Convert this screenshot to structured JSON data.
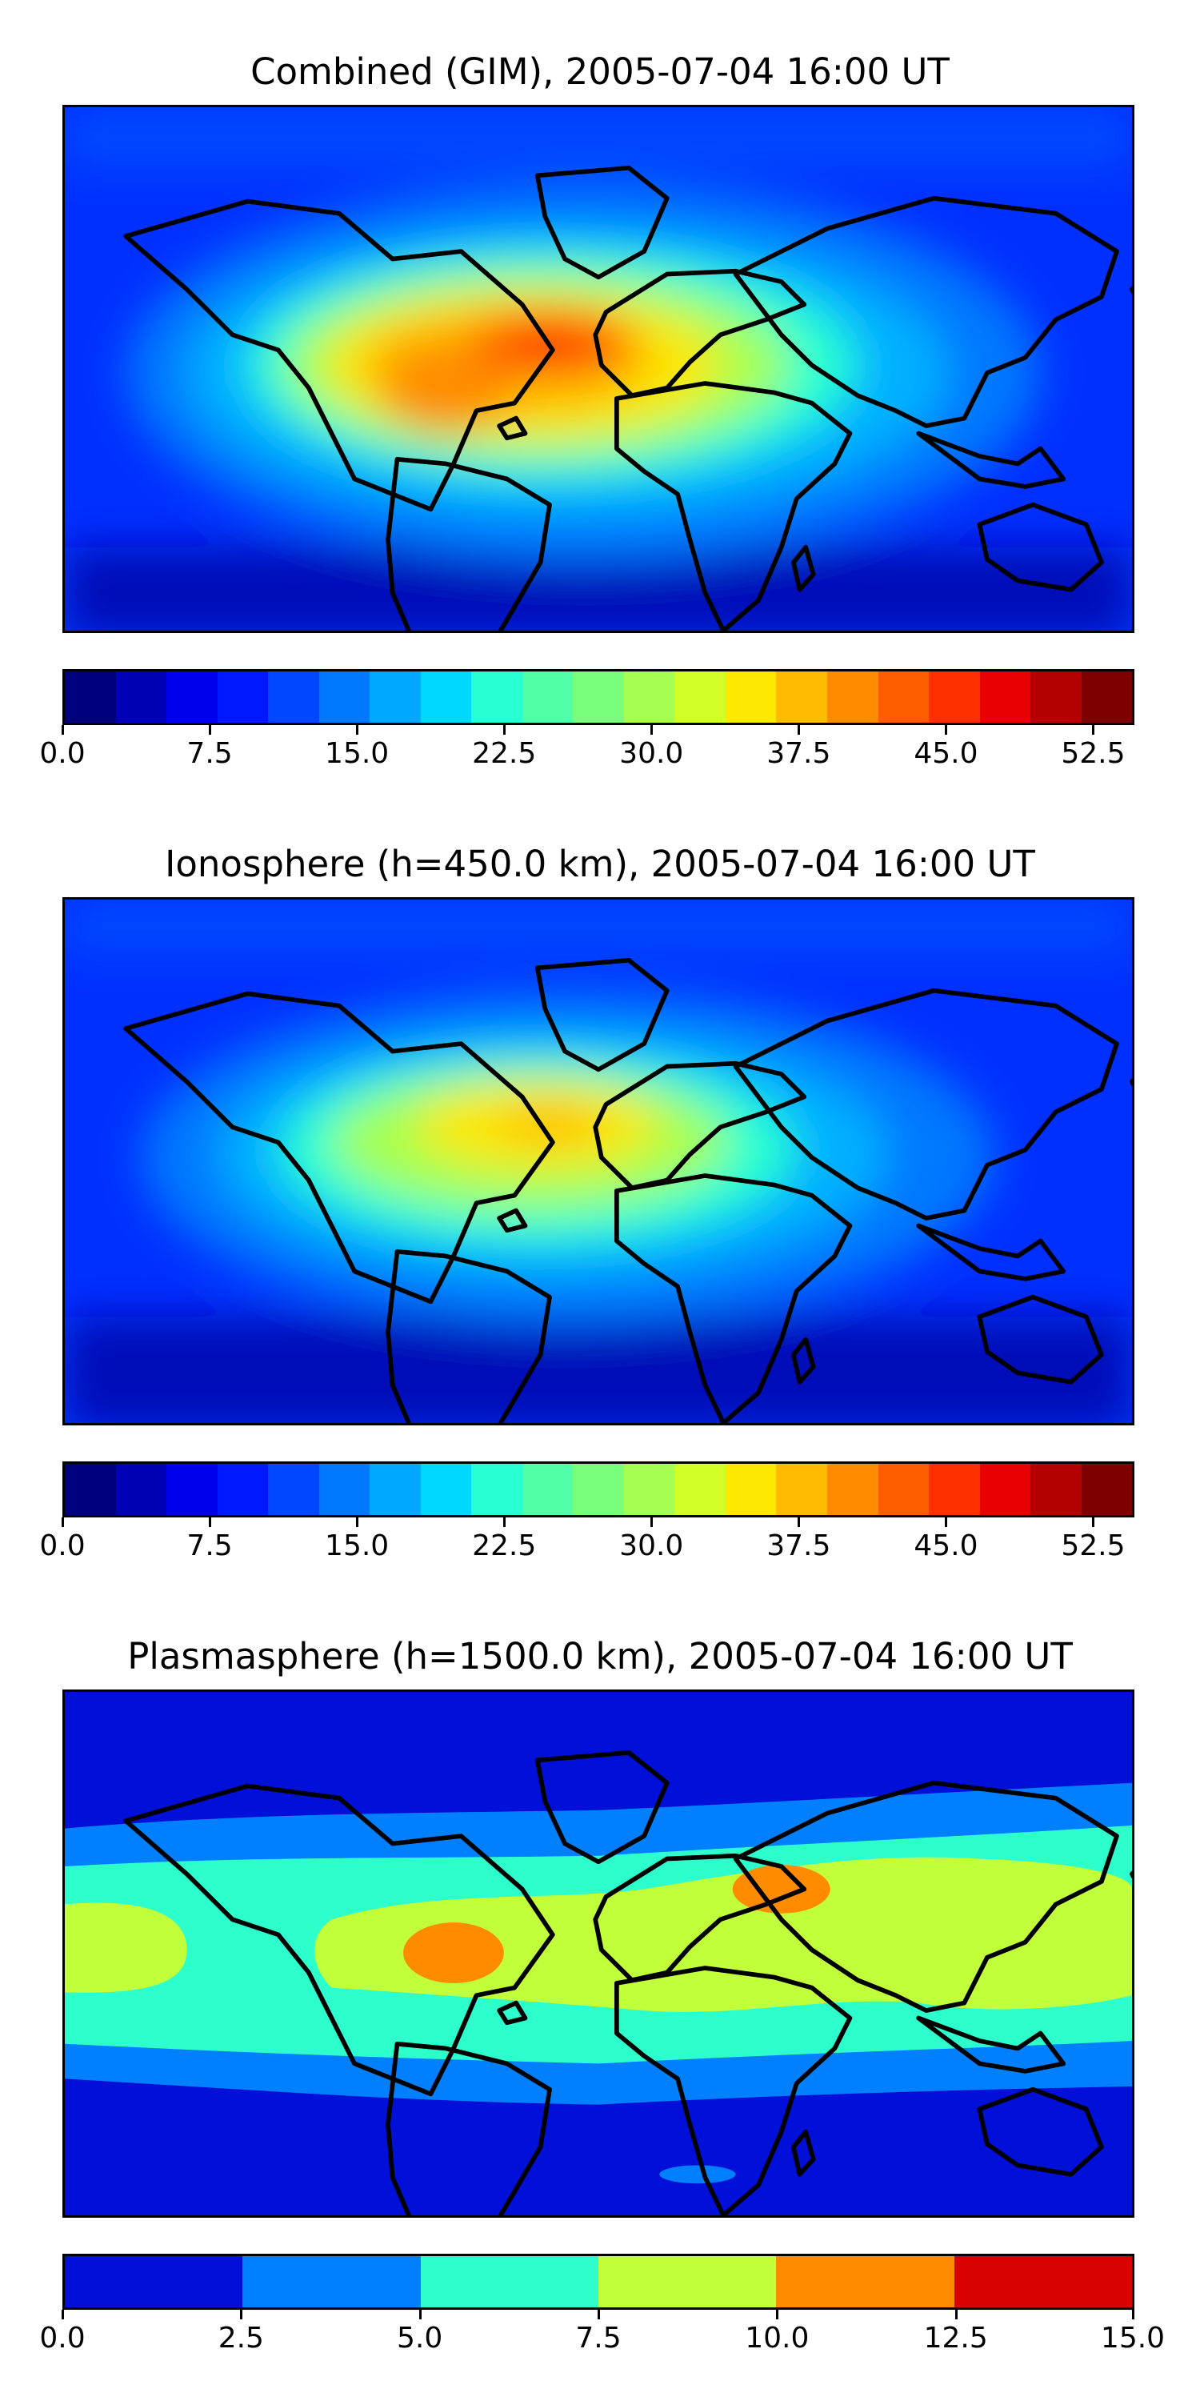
{
  "panels": [
    {
      "title": "Combined (GIM), 2005-07-04 16:00 UT",
      "colorbar": {
        "colors": [
          "#00007f",
          "#0000b4",
          "#0000ec",
          "#0018ff",
          "#0048ff",
          "#0078ff",
          "#00a8ff",
          "#00d8ff",
          "#26ffd1",
          "#50ffa6",
          "#7aff7c",
          "#a6ff50",
          "#d1ff26",
          "#fce800",
          "#ffbb00",
          "#ff8c00",
          "#ff5e00",
          "#ff2f00",
          "#e80000",
          "#b40000",
          "#7f0000"
        ],
        "ticks": [
          "0.0",
          "7.5",
          "15.0",
          "22.5",
          "30.0",
          "37.5",
          "45.0",
          "52.5"
        ],
        "tick_values": [
          0.0,
          7.5,
          15.0,
          22.5,
          30.0,
          37.5,
          45.0,
          52.5
        ],
        "range": [
          0,
          54.6
        ]
      }
    },
    {
      "title": "Ionosphere  (h=450.0 km), 2005-07-04 16:00 UT",
      "colorbar": {
        "colors": [
          "#00007f",
          "#0000b4",
          "#0000ec",
          "#0018ff",
          "#0048ff",
          "#0078ff",
          "#00a8ff",
          "#00d8ff",
          "#26ffd1",
          "#50ffa6",
          "#7aff7c",
          "#a6ff50",
          "#d1ff26",
          "#fce800",
          "#ffbb00",
          "#ff8c00",
          "#ff5e00",
          "#ff2f00",
          "#e80000",
          "#b40000",
          "#7f0000"
        ],
        "ticks": [
          "0.0",
          "7.5",
          "15.0",
          "22.5",
          "30.0",
          "37.5",
          "45.0",
          "52.5"
        ],
        "tick_values": [
          0.0,
          7.5,
          15.0,
          22.5,
          30.0,
          37.5,
          45.0,
          52.5
        ],
        "range": [
          0,
          54.6
        ]
      }
    },
    {
      "title": "Plasmasphere (h=1500.0 km), 2005-07-04 16:00 UT",
      "colorbar": {
        "colors": [
          "#0010d8",
          "#0080ff",
          "#2cffcc",
          "#c0ff3a",
          "#ff8c00",
          "#d80000"
        ],
        "ticks": [
          "0.0",
          "2.5",
          "5.0",
          "7.5",
          "10.0",
          "12.5",
          "15.0"
        ],
        "tick_values": [
          0.0,
          2.5,
          5.0,
          7.5,
          10.0,
          12.5,
          15.0
        ],
        "range": [
          0,
          15
        ]
      }
    }
  ]
}
